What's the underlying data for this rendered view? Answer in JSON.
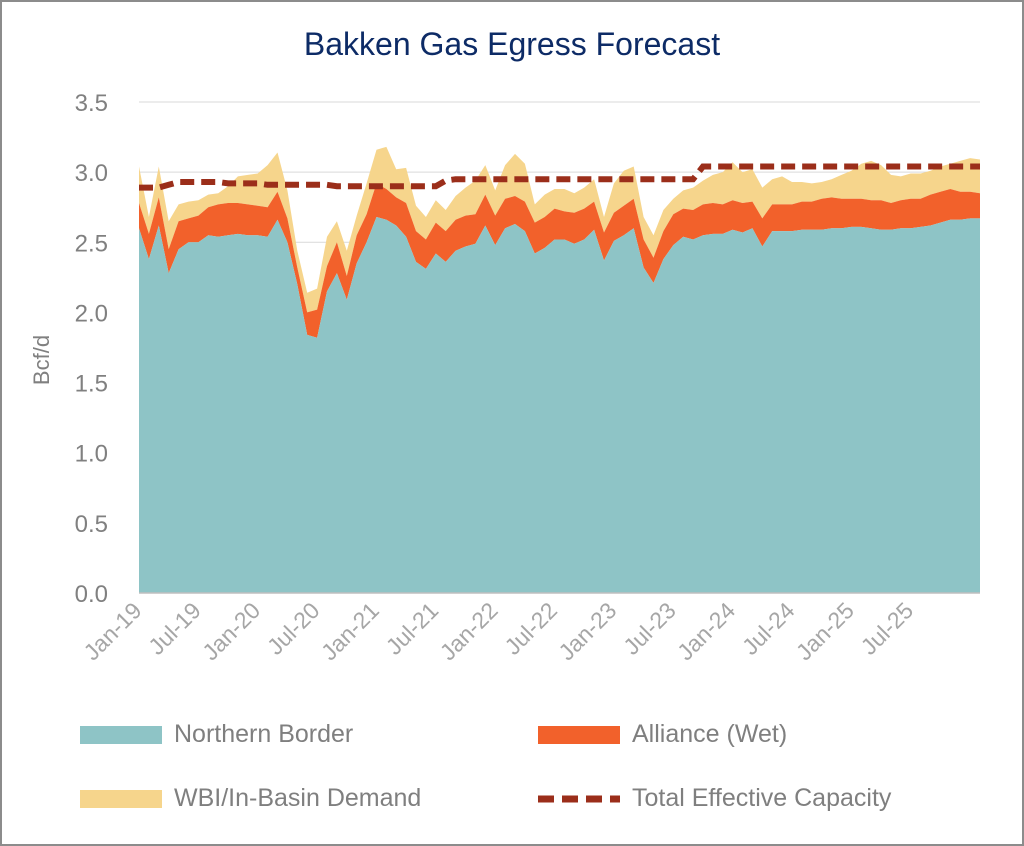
{
  "chart_data": {
    "type": "area",
    "title": "Bakken Gas Egress Forecast",
    "ylabel": "Bcf/d",
    "xlabel": "",
    "ylim": [
      0,
      3.5
    ],
    "y_ticks": [
      "0.0",
      "0.5",
      "1.0",
      "1.5",
      "2.0",
      "2.5",
      "3.0",
      "3.5"
    ],
    "x_tick_labels": [
      "Jan-19",
      "Jul-19",
      "Jan-20",
      "Jul-20",
      "Jan-21",
      "Jul-21",
      "Jan-22",
      "Jul-22",
      "Jan-23",
      "Jul-23",
      "Jan-24",
      "Jul-24",
      "Jan-25",
      "Jul-25"
    ],
    "x_start": "Jan-19",
    "x_end": "Dec-25",
    "grid": true,
    "legend_position": "bottom",
    "colors": {
      "northern_border": "#8ec4c6",
      "alliance": "#f2612b",
      "wbi": "#f6d58c",
      "capacity": "#9b2e1a",
      "title": "#0d2b66"
    },
    "series": [
      {
        "name": "Northern Border",
        "stack": "bottom",
        "values": [
          2.6,
          2.38,
          2.62,
          2.28,
          2.45,
          2.5,
          2.5,
          2.55,
          2.54,
          2.55,
          2.56,
          2.55,
          2.55,
          2.54,
          2.66,
          2.5,
          2.2,
          1.84,
          1.82,
          2.15,
          2.28,
          2.09,
          2.35,
          2.5,
          2.68,
          2.66,
          2.62,
          2.54,
          2.36,
          2.31,
          2.42,
          2.36,
          2.44,
          2.47,
          2.49,
          2.62,
          2.48,
          2.6,
          2.63,
          2.58,
          2.42,
          2.46,
          2.52,
          2.52,
          2.49,
          2.52,
          2.59,
          2.37,
          2.51,
          2.55,
          2.6,
          2.32,
          2.21,
          2.38,
          2.48,
          2.54,
          2.52,
          2.55,
          2.56,
          2.56,
          2.59,
          2.57,
          2.6,
          2.47,
          2.58,
          2.58,
          2.58,
          2.59,
          2.59,
          2.59,
          2.6,
          2.6,
          2.61,
          2.61,
          2.6,
          2.59,
          2.59,
          2.6,
          2.6,
          2.61,
          2.62,
          2.64,
          2.66,
          2.66,
          2.67,
          2.67
        ]
      },
      {
        "name": "Alliance (Wet)",
        "stack": "middle",
        "values": [
          0.18,
          0.18,
          0.2,
          0.17,
          0.2,
          0.17,
          0.19,
          0.2,
          0.23,
          0.23,
          0.22,
          0.22,
          0.21,
          0.21,
          0.2,
          0.17,
          0.12,
          0.16,
          0.2,
          0.18,
          0.22,
          0.17,
          0.2,
          0.2,
          0.24,
          0.22,
          0.2,
          0.24,
          0.22,
          0.21,
          0.22,
          0.22,
          0.22,
          0.22,
          0.21,
          0.22,
          0.21,
          0.21,
          0.2,
          0.21,
          0.22,
          0.22,
          0.22,
          0.2,
          0.22,
          0.22,
          0.2,
          0.2,
          0.2,
          0.21,
          0.21,
          0.2,
          0.18,
          0.2,
          0.22,
          0.2,
          0.21,
          0.22,
          0.22,
          0.21,
          0.21,
          0.21,
          0.19,
          0.2,
          0.19,
          0.19,
          0.19,
          0.2,
          0.2,
          0.22,
          0.22,
          0.21,
          0.2,
          0.2,
          0.2,
          0.21,
          0.19,
          0.2,
          0.21,
          0.2,
          0.22,
          0.22,
          0.22,
          0.2,
          0.19,
          0.18
        ]
      },
      {
        "name": "WBI/In-Basin Demand",
        "stack": "top",
        "values": [
          0.26,
          0.12,
          0.22,
          0.2,
          0.12,
          0.12,
          0.11,
          0.09,
          0.08,
          0.12,
          0.19,
          0.21,
          0.23,
          0.3,
          0.28,
          0.2,
          0.12,
          0.14,
          0.15,
          0.21,
          0.15,
          0.18,
          0.14,
          0.22,
          0.24,
          0.3,
          0.2,
          0.25,
          0.18,
          0.16,
          0.16,
          0.15,
          0.17,
          0.2,
          0.24,
          0.21,
          0.18,
          0.24,
          0.3,
          0.27,
          0.13,
          0.16,
          0.14,
          0.16,
          0.14,
          0.15,
          0.16,
          0.11,
          0.21,
          0.25,
          0.23,
          0.16,
          0.16,
          0.15,
          0.11,
          0.13,
          0.16,
          0.17,
          0.2,
          0.23,
          0.27,
          0.22,
          0.23,
          0.22,
          0.18,
          0.2,
          0.16,
          0.14,
          0.13,
          0.12,
          0.13,
          0.17,
          0.2,
          0.25,
          0.28,
          0.25,
          0.2,
          0.17,
          0.18,
          0.18,
          0.17,
          0.18,
          0.18,
          0.22,
          0.24,
          0.24
        ]
      },
      {
        "name": "Total Effective Capacity",
        "style": "dashed-line",
        "values": [
          2.89,
          2.89,
          2.89,
          2.91,
          2.93,
          2.93,
          2.93,
          2.93,
          2.93,
          2.92,
          2.92,
          2.92,
          2.92,
          2.91,
          2.91,
          2.91,
          2.91,
          2.91,
          2.91,
          2.91,
          2.9,
          2.9,
          2.9,
          2.9,
          2.9,
          2.9,
          2.9,
          2.9,
          2.9,
          2.9,
          2.9,
          2.94,
          2.95,
          2.95,
          2.95,
          2.95,
          2.95,
          2.95,
          2.95,
          2.95,
          2.95,
          2.95,
          2.95,
          2.95,
          2.95,
          2.95,
          2.95,
          2.95,
          2.95,
          2.95,
          2.95,
          2.95,
          2.95,
          2.95,
          2.95,
          2.95,
          2.95,
          3.04,
          3.04,
          3.04,
          3.04,
          3.04,
          3.04,
          3.04,
          3.04,
          3.04,
          3.04,
          3.04,
          3.04,
          3.04,
          3.04,
          3.04,
          3.04,
          3.04,
          3.04,
          3.04,
          3.04,
          3.04,
          3.04,
          3.04,
          3.04,
          3.04,
          3.04,
          3.04,
          3.04,
          3.04
        ]
      }
    ]
  }
}
